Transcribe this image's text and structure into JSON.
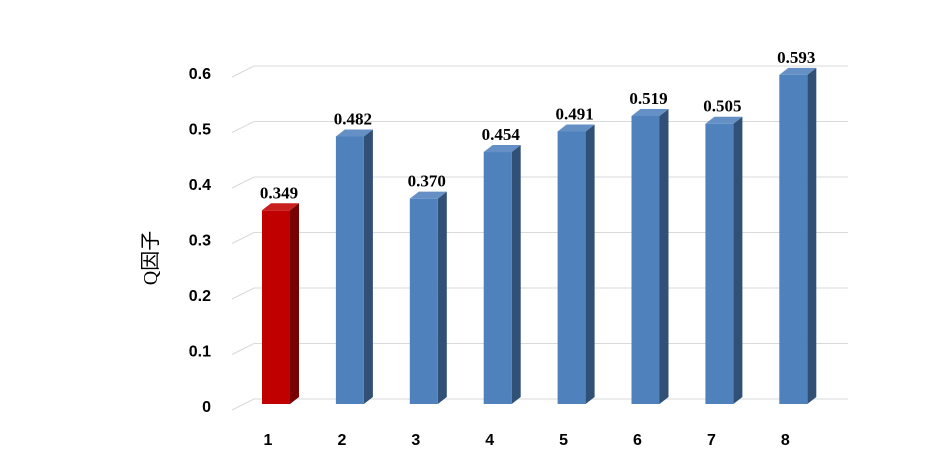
{
  "chart_data": {
    "type": "bar",
    "style": "3d-columns",
    "title": "",
    "xlabel": "",
    "ylabel": "Q因子",
    "categories": [
      "1",
      "2",
      "3",
      "4",
      "5",
      "6",
      "7",
      "8"
    ],
    "values": [
      0.349,
      0.482,
      0.37,
      0.454,
      0.491,
      0.519,
      0.505,
      0.593
    ],
    "data_labels": [
      "0.349",
      "0.482",
      "0.370",
      "0.454",
      "0.491",
      "0.519",
      "0.505",
      "0.593"
    ],
    "yticks": [
      "0",
      "0.1",
      "0.2",
      "0.3",
      "0.4",
      "0.5",
      "0.6"
    ],
    "ylim": [
      0,
      0.6
    ],
    "grid": true,
    "legend": "none",
    "highlight_index": 0,
    "colors": {
      "highlight": "#C00000",
      "bar": "#4F81BD",
      "grid": "#D9D9D9"
    }
  }
}
